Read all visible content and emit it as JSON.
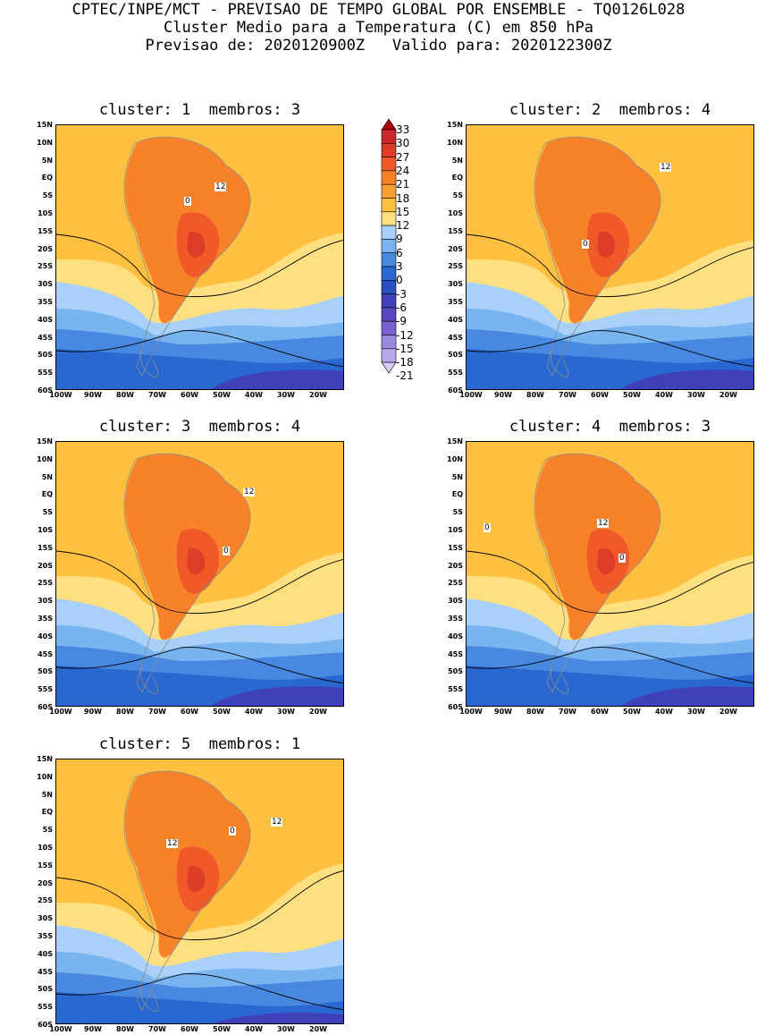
{
  "header": {
    "line1": "CPTEC/INPE/MCT - PREVISAO DE TEMPO GLOBAL POR ENSEMBLE - TQ0126L028",
    "line2": "Cluster Medio para a Temperatura (C) em 850 hPa",
    "line3": "Previsao de: 2020120900Z   Valido para: 2020122300Z"
  },
  "panels": [
    {
      "title": "cluster: 1  membros: 3",
      "labels": [
        {
          "text": "12"
        },
        {
          "text": "0"
        }
      ]
    },
    {
      "title": "cluster: 2  membros: 4",
      "labels": [
        {
          "text": "12"
        },
        {
          "text": "0"
        }
      ]
    },
    {
      "title": "cluster: 3  membros: 4",
      "labels": [
        {
          "text": "12"
        },
        {
          "text": "0"
        }
      ]
    },
    {
      "title": "cluster: 4  membros: 3",
      "labels": [
        {
          "text": "12"
        },
        {
          "text": "0"
        },
        {
          "text": "0"
        }
      ]
    },
    {
      "title": "cluster: 5  membros: 1",
      "labels": [
        {
          "text": "12"
        },
        {
          "text": "12"
        },
        {
          "text": "0"
        }
      ]
    }
  ],
  "axes": {
    "lat_ticks": [
      "15N",
      "10N",
      "5N",
      "EQ",
      "5S",
      "10S",
      "15S",
      "20S",
      "25S",
      "30S",
      "35S",
      "40S",
      "45S",
      "50S",
      "55S",
      "60S"
    ],
    "lon_ticks": [
      "100W",
      "90W",
      "80W",
      "70W",
      "60W",
      "50W",
      "40W",
      "30W",
      "20W"
    ]
  },
  "colorbar": {
    "labels": [
      "33",
      "30",
      "27",
      "24",
      "21",
      "18",
      "15",
      "12",
      "9",
      "6",
      "3",
      "0",
      "-3",
      "-6",
      "-9",
      "-12",
      "-15",
      "-18",
      "-21"
    ],
    "colors": [
      "#a50010",
      "#c8282d",
      "#dc3c28",
      "#f05a28",
      "#f8822a",
      "#f8a030",
      "#ffc040",
      "#ffe080",
      "#a8d0f8",
      "#78b4f0",
      "#4888e0",
      "#2868d0",
      "#2850c0",
      "#4040b8",
      "#5848c0",
      "#7860d0",
      "#9888e0",
      "#b8a8ec",
      "#d8ccf4"
    ],
    "units": "C"
  }
}
